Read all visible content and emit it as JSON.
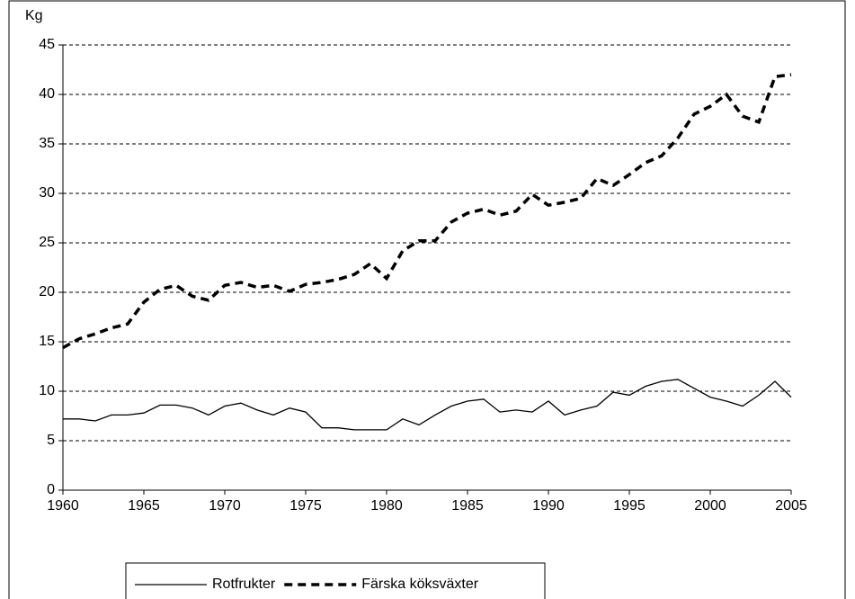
{
  "chart_data": {
    "type": "line",
    "y_label": "Kg",
    "x": [
      1960,
      1961,
      1962,
      1963,
      1964,
      1965,
      1966,
      1967,
      1968,
      1969,
      1970,
      1971,
      1972,
      1973,
      1974,
      1975,
      1976,
      1977,
      1978,
      1979,
      1980,
      1981,
      1982,
      1983,
      1984,
      1985,
      1986,
      1987,
      1988,
      1989,
      1990,
      1991,
      1992,
      1993,
      1994,
      1995,
      1996,
      1997,
      1998,
      1999,
      2000,
      2001,
      2002,
      2003,
      2004,
      2005
    ],
    "series": [
      {
        "name": "Rotfrukter",
        "color": "#000000",
        "dash": false,
        "values": [
          7.2,
          7.2,
          7.0,
          7.6,
          7.6,
          7.8,
          8.6,
          8.6,
          8.3,
          7.6,
          8.5,
          8.8,
          8.1,
          7.6,
          8.3,
          7.9,
          6.3,
          6.3,
          6.1,
          6.1,
          6.1,
          7.2,
          6.6,
          7.6,
          8.5,
          9.0,
          9.2,
          7.9,
          8.1,
          7.9,
          9.0,
          7.6,
          8.1,
          8.5,
          9.9,
          9.6,
          10.5,
          11.0,
          11.2,
          10.3,
          9.4,
          9.0,
          8.5,
          9.6,
          11.0,
          9.4
        ]
      },
      {
        "name": "Färska köksväxter",
        "color": "#000000",
        "dash": true,
        "values": [
          14.4,
          15.3,
          15.8,
          16.4,
          16.8,
          19.0,
          20.3,
          20.7,
          19.6,
          19.2,
          20.7,
          21.0,
          20.5,
          20.7,
          20.1,
          20.8,
          21.0,
          21.3,
          21.8,
          22.9,
          21.4,
          24.2,
          25.2,
          25.2,
          27.1,
          28.0,
          28.4,
          27.8,
          28.2,
          29.9,
          28.8,
          29.1,
          29.5,
          31.5,
          30.8,
          31.9,
          33.1,
          33.8,
          35.6,
          38.0,
          38.8,
          40.0,
          37.8,
          37.2,
          41.8,
          42.0
        ]
      }
    ],
    "xlim": [
      1960,
      2005
    ],
    "xticks": [
      1960,
      1965,
      1970,
      1975,
      1980,
      1985,
      1990,
      1995,
      2000,
      2005
    ],
    "ylim": [
      0,
      45
    ],
    "yticks": [
      0,
      5,
      10,
      15,
      20,
      25,
      30,
      35,
      40,
      45
    ],
    "grid": true,
    "legend": "bottom"
  }
}
